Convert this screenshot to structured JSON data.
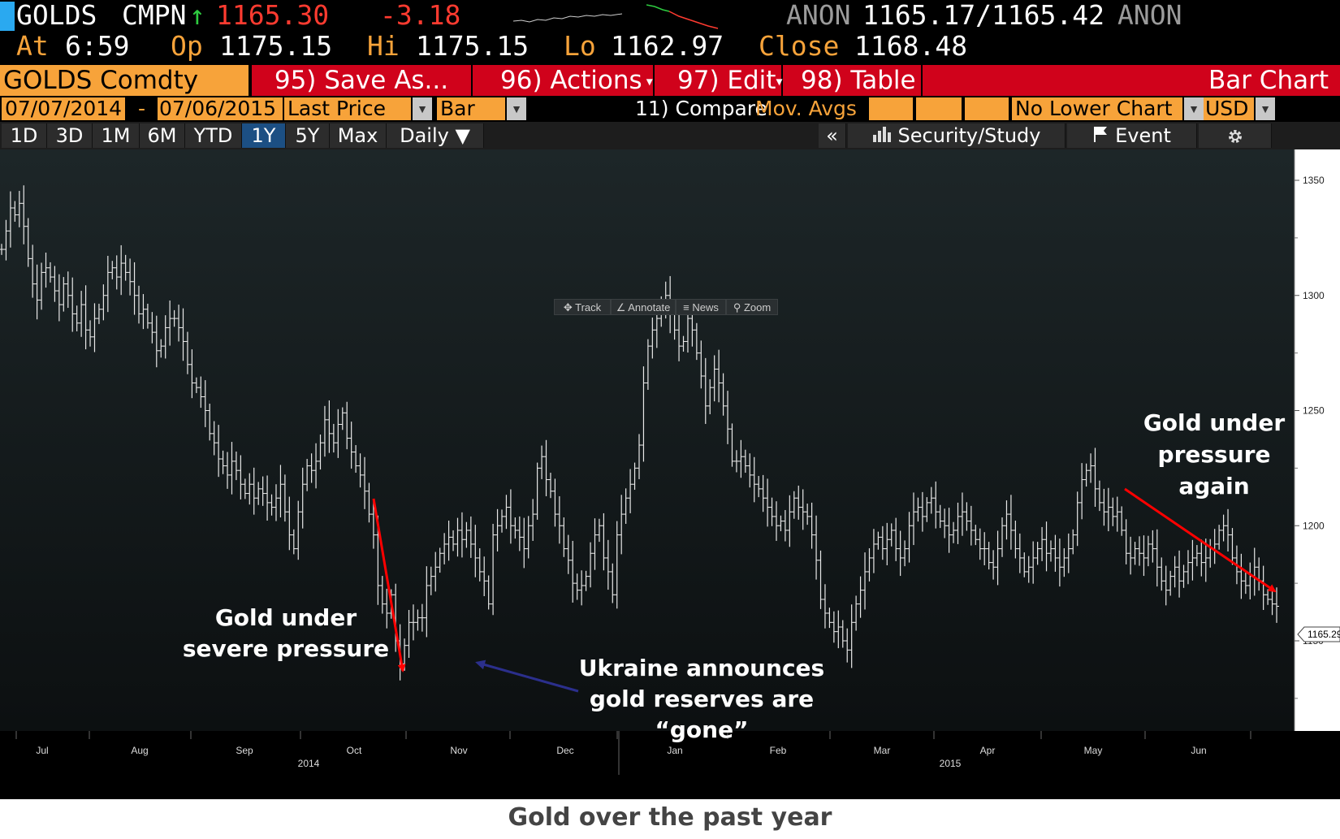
{
  "quote": {
    "ticker": "GOLDS",
    "source": "CMPN",
    "arrow": "↑",
    "last": "1165.30",
    "change": "-3.18",
    "anon_left": "ANON",
    "bid_ask": "1165.17/1165.42",
    "anon_right": "ANON",
    "at_label": "At",
    "at_value": "6:59",
    "op_label": "Op",
    "op_value": "1175.15",
    "hi_label": "Hi",
    "hi_value": "1175.15",
    "lo_label": "Lo",
    "lo_value": "1162.97",
    "close_label": "Close",
    "close_value": "1168.48"
  },
  "menu": {
    "security": "GOLDS Comdty",
    "save_as": "95) Save As...",
    "actions": "96) Actions",
    "edit": "97) Edit",
    "table": "98) Table",
    "chart_title": "Bar Chart"
  },
  "params": {
    "start_date": "07/07/2014",
    "dash": "-",
    "end_date": "07/06/2015",
    "field": "Last Price",
    "style": "Bar",
    "compare": "11) Compare",
    "mov_avgs": "Mov. Avgs",
    "lower_chart": "No Lower Chart",
    "currency": "USD"
  },
  "ranges": {
    "items": [
      "1D",
      "3D",
      "1M",
      "6M",
      "YTD",
      "1Y",
      "5Y",
      "Max"
    ],
    "active": "1Y",
    "period": "Daily ▼",
    "collapse": "«",
    "security_study": "Security/Study",
    "event": "Event"
  },
  "toolbar": {
    "track": "Track",
    "annotate": "Annotate",
    "news": "News",
    "zoom": "Zoom"
  },
  "annotations": {
    "severe": [
      "Gold under",
      "severe pressure"
    ],
    "ukraine": [
      "Ukraine announces",
      "gold reserves are",
      "“gone”"
    ],
    "again": [
      "Gold under",
      "pressure",
      "again"
    ]
  },
  "caption": "Gold over the past year",
  "colors": {
    "orange": "#f7a33a",
    "red_bar": "#d0021b",
    "active_range": "#1c4f83",
    "arrow_red": "#ff0000",
    "arrow_blue": "#2b2f8c"
  },
  "chart_data": {
    "type": "bar",
    "title": "",
    "xlabel": "",
    "ylabel": "",
    "ylim": [
      1120,
      1360
    ],
    "y_ticks": [
      "1350",
      "1300",
      "1250",
      "1200",
      "1150"
    ],
    "last_value_label": "1165.29",
    "x_tick_labels": [
      "Jul",
      "Aug",
      "Sep",
      "Oct",
      "Nov",
      "Dec",
      "Jan",
      "Feb",
      "Mar",
      "Apr",
      "May",
      "Jun"
    ],
    "year_labels": [
      "2014",
      "2015"
    ],
    "series": [
      {
        "values": [
          1320,
          1328,
          1338,
          1335,
          1340,
          1330,
          1316,
          1305,
          1298,
          1310,
          1312,
          1308,
          1302,
          1296,
          1305,
          1300,
          1292,
          1288,
          1296,
          1285,
          1282,
          1290,
          1294,
          1300,
          1310,
          1312,
          1308,
          1314,
          1310,
          1306,
          1300,
          1292,
          1294,
          1288,
          1284,
          1276,
          1278,
          1286,
          1290,
          1290,
          1286,
          1280,
          1270,
          1262,
          1260,
          1256,
          1250,
          1240,
          1236,
          1229,
          1226,
          1222,
          1228,
          1224,
          1218,
          1214,
          1218,
          1212,
          1216,
          1214,
          1210,
          1208,
          1212,
          1218,
          1206,
          1196,
          1190,
          1206,
          1218,
          1226,
          1224,
          1228,
          1236,
          1246,
          1240,
          1236,
          1244,
          1249,
          1238,
          1232,
          1226,
          1222,
          1215,
          1205,
          1196,
          1174,
          1166,
          1162,
          1170,
          1150,
          1140,
          1148,
          1158,
          1158,
          1160,
          1160,
          1174,
          1178,
          1182,
          1188,
          1192,
          1195,
          1192,
          1198,
          1194,
          1198,
          1192,
          1186,
          1180,
          1176,
          1166,
          1196,
          1200,
          1204,
          1208,
          1200,
          1198,
          1195,
          1190,
          1200,
          1205,
          1225,
          1230,
          1220,
          1215,
          1205,
          1200,
          1190,
          1185,
          1175,
          1172,
          1174,
          1178,
          1188,
          1196,
          1200,
          1186,
          1180,
          1170,
          1196,
          1205,
          1212,
          1218,
          1225,
          1235,
          1262,
          1278,
          1285,
          1290,
          1296,
          1300,
          1292,
          1285,
          1278,
          1280,
          1290,
          1285,
          1275,
          1265,
          1252,
          1260,
          1268,
          1262,
          1252,
          1242,
          1228,
          1228,
          1230,
          1226,
          1222,
          1218,
          1216,
          1212,
          1208,
          1204,
          1200,
          1202,
          1198,
          1206,
          1212,
          1208,
          1206,
          1204,
          1196,
          1185,
          1168,
          1162,
          1158,
          1154,
          1156,
          1150,
          1146,
          1158,
          1166,
          1172,
          1180,
          1186,
          1192,
          1195,
          1190,
          1194,
          1198,
          1190,
          1186,
          1190,
          1200,
          1206,
          1208,
          1204,
          1210,
          1212,
          1206,
          1202,
          1200,
          1196,
          1198,
          1204,
          1206,
          1202,
          1198,
          1194,
          1190,
          1190,
          1184,
          1182,
          1190,
          1200,
          1205,
          1198,
          1190,
          1186,
          1180,
          1182,
          1186,
          1190,
          1194,
          1188,
          1190,
          1186,
          1182,
          1186,
          1190,
          1196,
          1210,
          1220,
          1224,
          1226,
          1216,
          1210,
          1206,
          1208,
          1204,
          1206,
          1198,
          1188,
          1186,
          1190,
          1188,
          1186,
          1192,
          1190,
          1182,
          1176,
          1172,
          1178,
          1182,
          1176,
          1180,
          1184,
          1186,
          1188,
          1184,
          1186,
          1190,
          1192,
          1198,
          1200,
          1196,
          1186,
          1180,
          1176,
          1174,
          1178,
          1182,
          1176,
          1170,
          1168,
          1166,
          1165
        ]
      }
    ]
  }
}
